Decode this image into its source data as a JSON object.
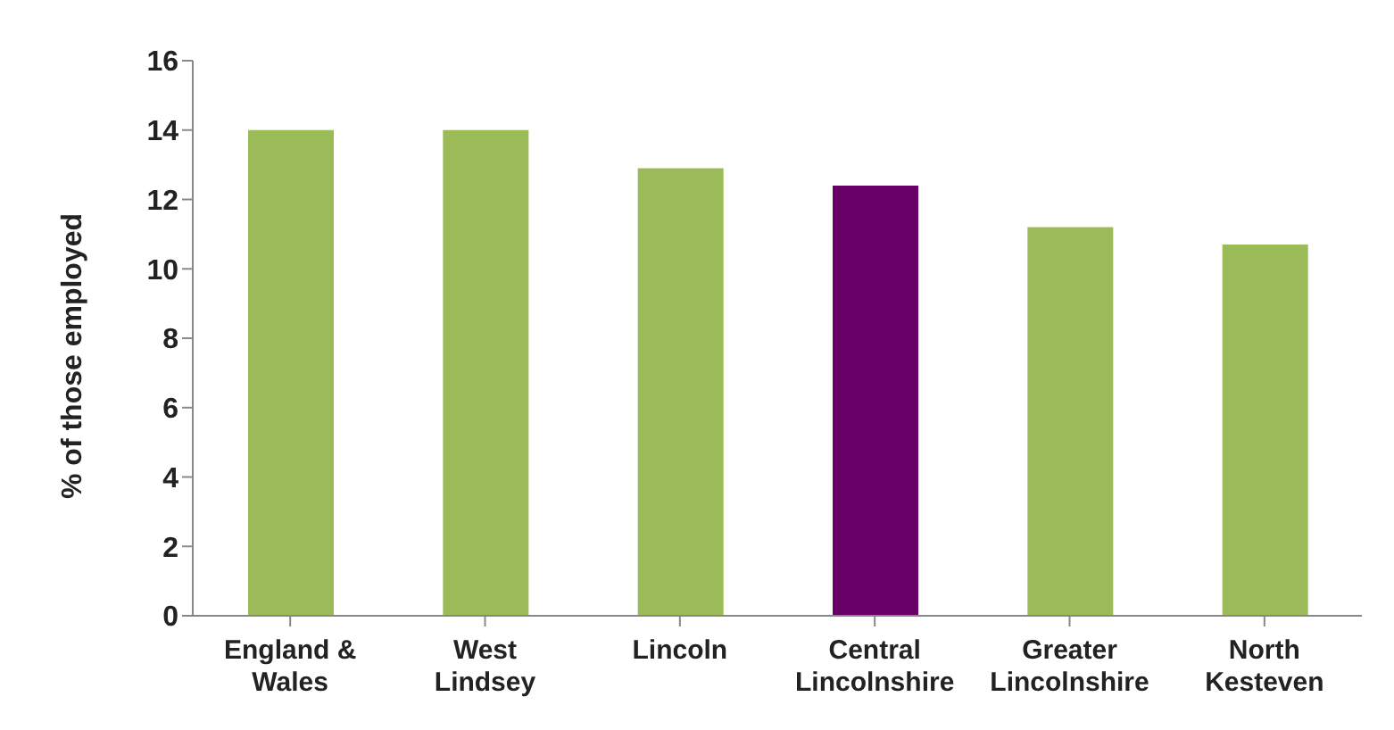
{
  "chart_data": {
    "type": "bar",
    "ylabel": "% of those employed",
    "categories": [
      "England & Wales",
      "West Lindsey",
      "Lincoln",
      "Central Lincolnshire",
      "Greater Lincolnshire",
      "North Kesteven"
    ],
    "values": [
      14,
      14,
      12.9,
      12.4,
      11.2,
      10.7
    ],
    "colors": [
      "#9bbb59",
      "#9bbb59",
      "#9bbb59",
      "#660066",
      "#9bbb59",
      "#9bbb59"
    ],
    "ylim": [
      0,
      16
    ],
    "yticks": [
      0,
      2,
      4,
      6,
      8,
      10,
      12,
      14,
      16
    ],
    "grid": false,
    "legend": false
  }
}
